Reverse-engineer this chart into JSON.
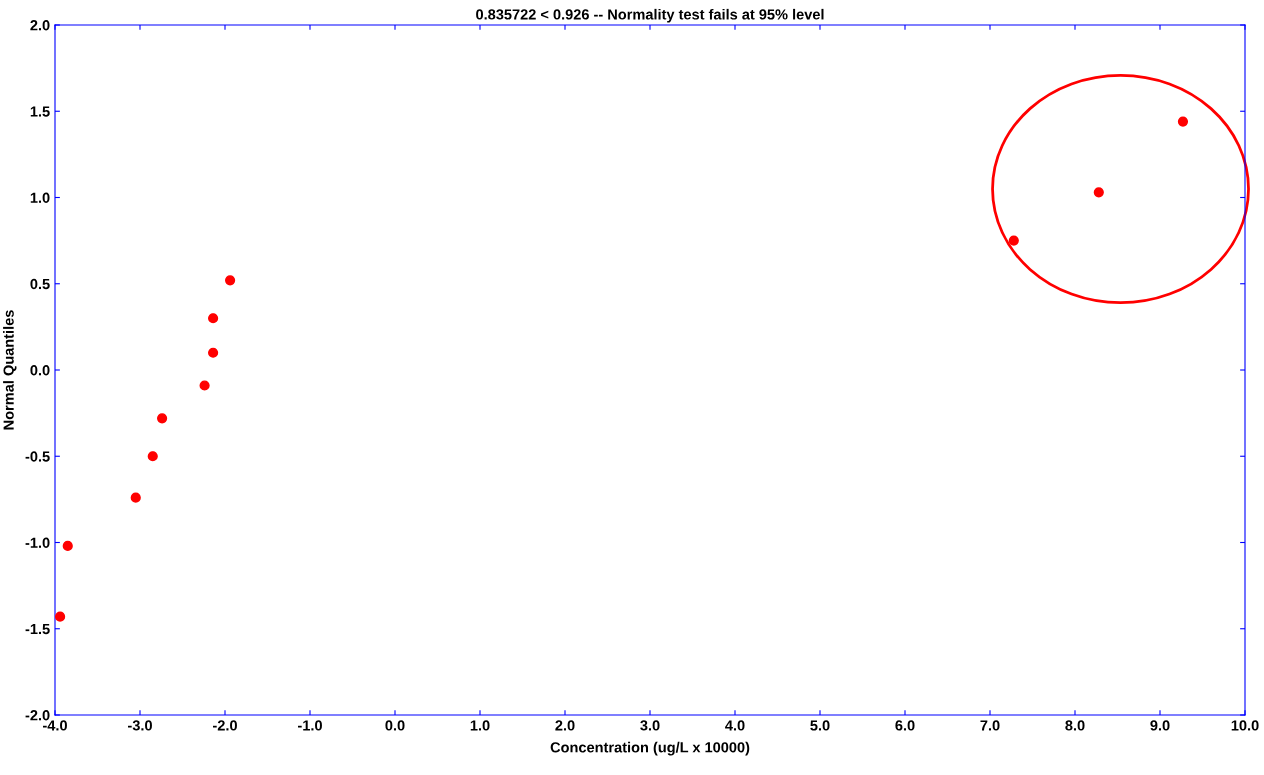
{
  "chart_data": {
    "type": "scatter",
    "title": "0.835722 < 0.926 -- Normality test fails at 95% level",
    "xlabel": "Concentration (ug/L x 10000)",
    "ylabel": "Normal Quantiles",
    "x": [
      -3.94,
      -3.85,
      -3.05,
      -2.85,
      -2.74,
      -2.24,
      -2.14,
      -2.14,
      -1.94,
      7.28,
      8.28,
      9.27
    ],
    "series": [
      {
        "color": "#ff0000",
        "values": [
          -1.43,
          -1.02,
          -0.74,
          -0.5,
          -0.28,
          -0.09,
          0.1,
          0.3,
          0.52,
          0.75,
          1.03,
          1.44
        ]
      }
    ],
    "marker": "circle",
    "grid": false,
    "xlim": [
      -4,
      10
    ],
    "ylim": [
      -2,
      2
    ],
    "xticks": [
      {
        "value": -4,
        "label": "-4.0"
      },
      {
        "value": -3,
        "label": "-3.0"
      },
      {
        "value": -2,
        "label": "-2.0"
      },
      {
        "value": -1,
        "label": "-1.0"
      },
      {
        "value": 0,
        "label": "0.0"
      },
      {
        "value": 1,
        "label": "1.0"
      },
      {
        "value": 2,
        "label": "2.0"
      },
      {
        "value": 3,
        "label": "3.0"
      },
      {
        "value": 4,
        "label": "4.0"
      },
      {
        "value": 5,
        "label": "5.0"
      },
      {
        "value": 6,
        "label": "6.0"
      },
      {
        "value": 7,
        "label": "7.0"
      },
      {
        "value": 8,
        "label": "8.0"
      },
      {
        "value": 9,
        "label": "9.0"
      },
      {
        "value": 10,
        "label": "10.0"
      }
    ],
    "yticks": [
      {
        "value": -2,
        "label": "-2.0"
      },
      {
        "value": -1.5,
        "label": "-1.5"
      },
      {
        "value": -1,
        "label": "-1.0"
      },
      {
        "value": -0.5,
        "label": "-0.5"
      },
      {
        "value": 0,
        "label": "0.0"
      },
      {
        "value": 0.5,
        "label": "0.5"
      },
      {
        "value": 1,
        "label": "1.0"
      },
      {
        "value": 1.5,
        "label": "1.5"
      },
      {
        "value": 2,
        "label": "2.0"
      }
    ]
  }
}
